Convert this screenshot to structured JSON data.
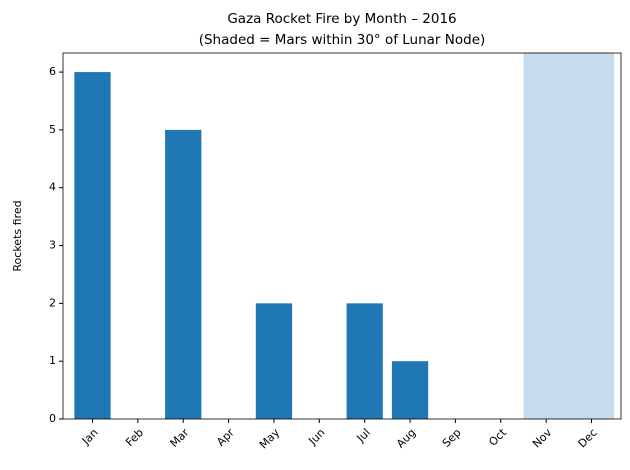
{
  "chart_data": {
    "type": "bar",
    "title": "Gaza Rocket Fire by Month – 2016",
    "subtitle": "(Shaded = Mars within 30° of Lunar Node)",
    "y_label": "Rockets fired",
    "categories": [
      "Jan",
      "Feb",
      "Mar",
      "Apr",
      "May",
      "Jun",
      "Jul",
      "Aug",
      "Sep",
      "Oct",
      "Nov",
      "Dec"
    ],
    "values": [
      6,
      0,
      5,
      0,
      2,
      0,
      2,
      1,
      0,
      0,
      0,
      0
    ],
    "color": "#1f77b4",
    "shaded_categories": [
      "Nov",
      "Dec"
    ],
    "shade_color": "#c6dcec",
    "ylim": [
      0,
      6.33
    ],
    "yticks": [
      0,
      1,
      2,
      3,
      4,
      5,
      6
    ],
    "grid": false
  }
}
